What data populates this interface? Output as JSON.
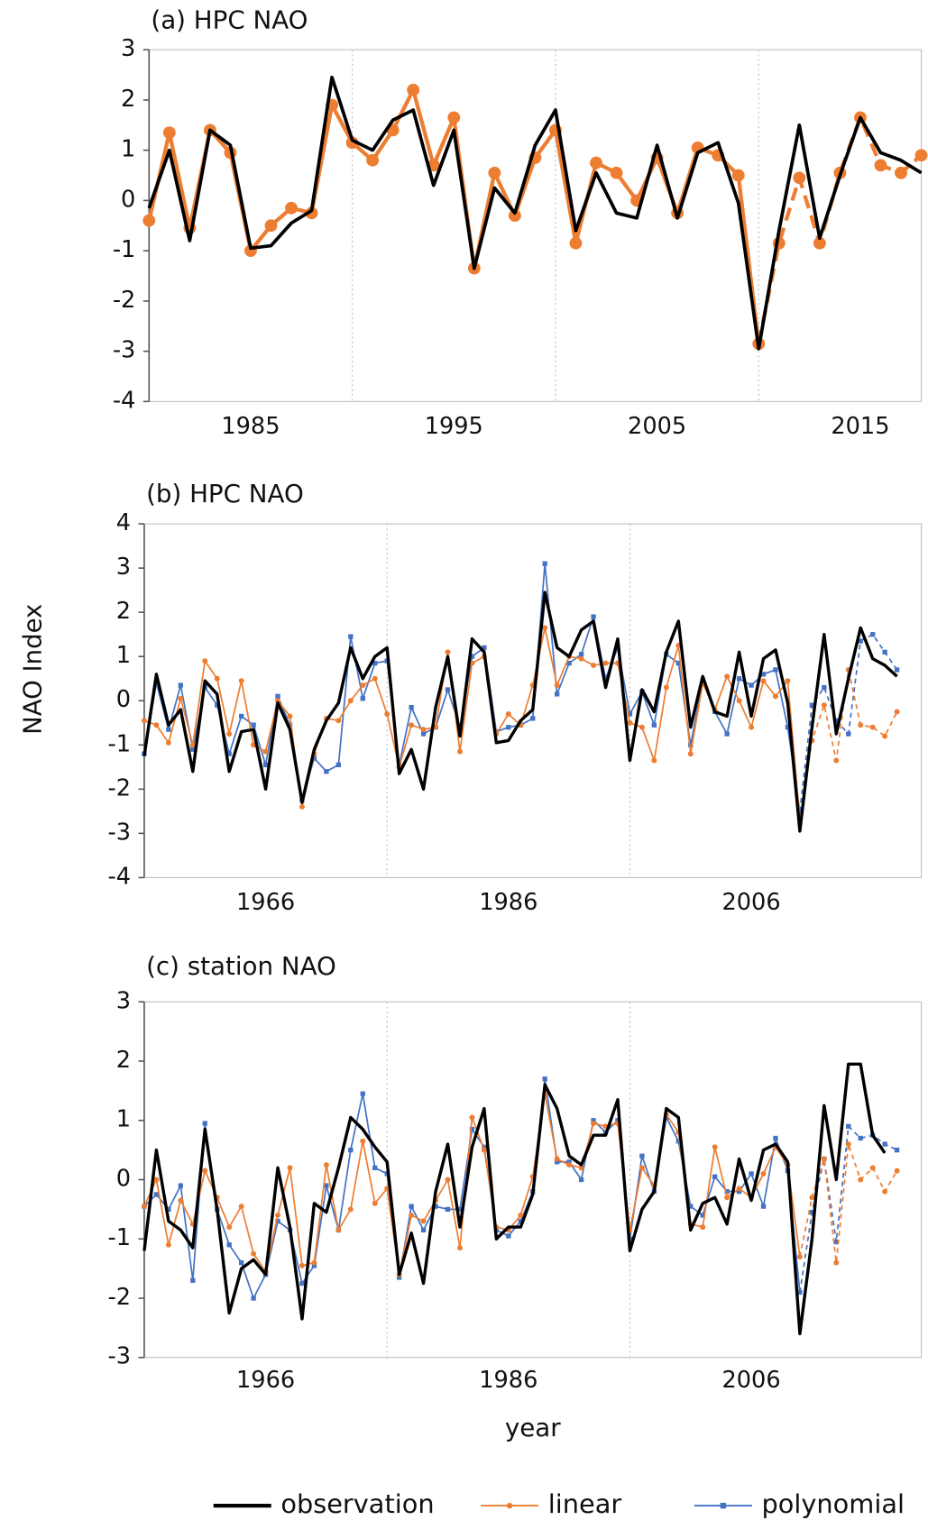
{
  "chart_data": [
    {
      "type": "line",
      "title": "(a) HPC NAO",
      "x": [
        1980,
        1981,
        1982,
        1983,
        1984,
        1985,
        1986,
        1987,
        1988,
        1989,
        1990,
        1991,
        1992,
        1993,
        1994,
        1995,
        1996,
        1997,
        1998,
        1999,
        2000,
        2001,
        2002,
        2003,
        2004,
        2005,
        2006,
        2007,
        2008,
        2009,
        2010,
        2011,
        2012,
        2013,
        2014,
        2015,
        2016,
        2017,
        2018
      ],
      "xlim": [
        1980,
        2018
      ],
      "xticks": [
        1985,
        1995,
        2005,
        2015
      ],
      "xgrid": [
        1990,
        2000,
        2010
      ],
      "ylim": [
        -4,
        3
      ],
      "yticks": [
        -4,
        -3,
        -2,
        -1,
        0,
        1,
        2,
        3
      ],
      "series": [
        {
          "color": "#000000",
          "values": [
            -0.15,
            1.0,
            -0.8,
            1.4,
            1.1,
            -0.95,
            -0.9,
            -0.45,
            -0.2,
            2.45,
            1.2,
            1.0,
            1.6,
            1.8,
            0.3,
            1.4,
            -1.35,
            0.25,
            -0.25,
            1.1,
            1.8,
            -0.6,
            0.55,
            -0.25,
            -0.35,
            1.1,
            -0.35,
            0.95,
            1.15,
            -0.05,
            -2.95,
            -0.6,
            1.5,
            -0.75,
            0.5,
            1.65,
            0.95,
            0.8,
            0.55
          ]
        },
        {
          "color": "#ed7d31",
          "marker": "circle",
          "dashed_from": 2010,
          "values": [
            -0.4,
            1.35,
            -0.55,
            1.4,
            0.95,
            -1.0,
            -0.5,
            -0.15,
            -0.25,
            1.9,
            1.15,
            0.8,
            1.4,
            2.2,
            0.7,
            1.65,
            -1.35,
            0.55,
            -0.3,
            0.85,
            1.4,
            -0.85,
            0.75,
            0.55,
            0.0,
            0.85,
            -0.25,
            1.05,
            0.9,
            0.5,
            -2.85,
            -0.85,
            0.45,
            -0.85,
            0.55,
            1.65,
            0.7,
            0.55,
            0.9
          ]
        }
      ]
    },
    {
      "type": "line",
      "title": "(b) HPC NAO",
      "ylabel": "NAO Index",
      "x": [
        1956,
        1957,
        1958,
        1959,
        1960,
        1961,
        1962,
        1963,
        1964,
        1965,
        1966,
        1967,
        1968,
        1969,
        1970,
        1971,
        1972,
        1973,
        1974,
        1975,
        1976,
        1977,
        1978,
        1979,
        1980,
        1981,
        1982,
        1983,
        1984,
        1985,
        1986,
        1987,
        1988,
        1989,
        1990,
        1991,
        1992,
        1993,
        1994,
        1995,
        1996,
        1997,
        1998,
        1999,
        2000,
        2001,
        2002,
        2003,
        2004,
        2005,
        2006,
        2007,
        2008,
        2009,
        2010,
        2011,
        2012,
        2013,
        2014,
        2015,
        2016,
        2017,
        2018
      ],
      "xlim": [
        1956,
        2020
      ],
      "xticks": [
        1966,
        1986,
        2006
      ],
      "xgrid": [
        1976,
        1996
      ],
      "ylim": [
        -4,
        4
      ],
      "yticks": [
        -4,
        -3,
        -2,
        -1,
        0,
        1,
        2,
        3,
        4
      ],
      "series": [
        {
          "name": "observation",
          "color": "#000000",
          "values": [
            -1.25,
            0.6,
            -0.55,
            -0.2,
            -1.6,
            0.45,
            0.15,
            -1.6,
            -0.7,
            -0.65,
            -2.0,
            -0.05,
            -0.65,
            -2.3,
            -1.1,
            -0.45,
            -0.05,
            1.2,
            0.5,
            1.0,
            1.2,
            -1.65,
            -1.1,
            -2.0,
            -0.15,
            1.0,
            -0.8,
            1.4,
            1.1,
            -0.95,
            -0.9,
            -0.45,
            -0.2,
            2.45,
            1.2,
            1.0,
            1.6,
            1.8,
            0.3,
            1.4,
            -1.35,
            0.25,
            -0.25,
            1.1,
            1.8,
            -0.6,
            0.55,
            -0.25,
            -0.35,
            1.1,
            -0.35,
            0.95,
            1.15,
            -0.05,
            -2.95,
            -0.6,
            1.5,
            -0.75,
            0.5,
            1.65,
            0.95,
            0.8,
            0.55
          ]
        },
        {
          "name": "linear",
          "color": "#ed7d31",
          "marker": "circle",
          "dashed_from": 2010,
          "values": [
            -0.45,
            -0.55,
            -0.95,
            0.05,
            -1.0,
            0.9,
            0.5,
            -0.75,
            0.45,
            -1.0,
            -1.15,
            0.0,
            -0.35,
            -2.4,
            -1.2,
            -0.4,
            -0.45,
            0.0,
            0.35,
            0.5,
            -0.3,
            -1.5,
            -0.55,
            -0.65,
            -0.6,
            1.1,
            -1.15,
            0.85,
            1.0,
            -0.75,
            -0.3,
            -0.55,
            0.35,
            1.65,
            0.35,
            1.0,
            0.95,
            0.8,
            0.85,
            0.85,
            -0.5,
            -0.6,
            -1.35,
            0.3,
            1.25,
            -1.2,
            0.4,
            -0.2,
            0.55,
            0.0,
            -0.6,
            0.45,
            0.1,
            0.45,
            -2.7,
            -0.9,
            -0.1,
            -1.35,
            0.7,
            -0.55,
            -0.6,
            -0.8,
            -0.25
          ]
        },
        {
          "name": "polynomial",
          "color": "#4472c4",
          "marker": "square",
          "dashed_from": 2010,
          "values": [
            -1.2,
            0.4,
            -0.65,
            0.35,
            -1.1,
            0.3,
            -0.1,
            -1.2,
            -0.35,
            -0.55,
            -1.45,
            0.1,
            -0.55,
            -2.25,
            -1.3,
            -1.6,
            -1.45,
            1.45,
            0.05,
            0.85,
            0.9,
            -1.45,
            -0.15,
            -0.75,
            -0.6,
            0.25,
            -0.6,
            1.0,
            1.2,
            -0.7,
            -0.6,
            -0.55,
            -0.4,
            3.1,
            0.15,
            0.85,
            1.05,
            1.9,
            0.5,
            1.2,
            -0.3,
            0.2,
            -0.55,
            1.05,
            0.85,
            -1.0,
            0.45,
            -0.25,
            -0.75,
            0.5,
            0.35,
            0.6,
            0.7,
            -0.6,
            -2.5,
            -0.1,
            0.3,
            -0.45,
            -0.75,
            1.35,
            1.5,
            1.1,
            0.7
          ]
        }
      ]
    },
    {
      "type": "line",
      "title": "(c) station NAO",
      "xlabel": "year",
      "x": [
        1956,
        1957,
        1958,
        1959,
        1960,
        1961,
        1962,
        1963,
        1964,
        1965,
        1966,
        1967,
        1968,
        1969,
        1970,
        1971,
        1972,
        1973,
        1974,
        1975,
        1976,
        1977,
        1978,
        1979,
        1980,
        1981,
        1982,
        1983,
        1984,
        1985,
        1986,
        1987,
        1988,
        1989,
        1990,
        1991,
        1992,
        1993,
        1994,
        1995,
        1996,
        1997,
        1998,
        1999,
        2000,
        2001,
        2002,
        2003,
        2004,
        2005,
        2006,
        2007,
        2008,
        2009,
        2010,
        2011,
        2012,
        2013,
        2014,
        2015,
        2016,
        2017,
        2018
      ],
      "xlim": [
        1956,
        2020
      ],
      "xticks": [
        1966,
        1986,
        2006
      ],
      "xgrid": [
        1976,
        1996
      ],
      "ylim": [
        -3,
        3
      ],
      "yticks": [
        -3,
        -2,
        -1,
        0,
        1,
        2,
        3
      ],
      "series": [
        {
          "name": "observation",
          "color": "#000000",
          "values": [
            -1.2,
            0.5,
            -0.7,
            -0.85,
            -1.15,
            0.85,
            -0.5,
            -2.25,
            -1.5,
            -1.35,
            -1.6,
            0.2,
            -0.8,
            -2.35,
            -0.4,
            -0.55,
            0.2,
            1.05,
            0.85,
            0.55,
            0.3,
            -1.6,
            -0.9,
            -1.75,
            -0.2,
            0.6,
            -0.8,
            0.55,
            1.2,
            -1.0,
            -0.8,
            -0.8,
            -0.25,
            1.6,
            1.2,
            0.4,
            0.25,
            0.75,
            0.75,
            1.35,
            -1.2,
            -0.5,
            -0.2,
            1.2,
            1.05,
            -0.85,
            -0.4,
            -0.3,
            -0.75,
            0.35,
            -0.35,
            0.5,
            0.6,
            0.3,
            -2.6,
            -1.0,
            1.25,
            0.0,
            1.95,
            1.95,
            0.75,
            0.45,
            null
          ]
        },
        {
          "name": "linear",
          "color": "#ed7d31",
          "marker": "circle",
          "dashed_from": 2010,
          "values": [
            -0.45,
            0.0,
            -1.1,
            -0.35,
            -0.75,
            0.15,
            -0.3,
            -0.8,
            -0.45,
            -1.25,
            -1.55,
            -0.6,
            0.2,
            -1.45,
            -1.4,
            0.25,
            -0.85,
            -0.5,
            0.65,
            -0.4,
            -0.15,
            -1.6,
            -0.6,
            -0.7,
            -0.35,
            0.0,
            -1.15,
            1.05,
            0.5,
            -0.8,
            -0.85,
            -0.6,
            0.05,
            1.45,
            0.35,
            0.25,
            0.2,
            0.95,
            0.9,
            0.95,
            -0.85,
            0.2,
            -0.1,
            1.1,
            0.8,
            -0.75,
            -0.8,
            0.55,
            -0.3,
            -0.15,
            -0.3,
            0.1,
            0.55,
            0.25,
            -1.3,
            -0.3,
            0.35,
            -1.4,
            0.6,
            0.0,
            0.2,
            -0.2,
            0.15
          ]
        },
        {
          "name": "polynomial",
          "color": "#4472c4",
          "marker": "square",
          "dashed_from": 2010,
          "values": [
            -0.45,
            -0.25,
            -0.5,
            -0.1,
            -1.7,
            0.95,
            -0.5,
            -1.1,
            -1.4,
            -2.0,
            -1.6,
            -0.7,
            -0.85,
            -1.75,
            -1.45,
            -0.1,
            -0.85,
            0.5,
            1.45,
            0.2,
            0.1,
            -1.65,
            -0.45,
            -0.85,
            -0.45,
            -0.5,
            -0.5,
            0.85,
            0.55,
            -0.85,
            -0.95,
            -0.7,
            -0.2,
            1.7,
            0.3,
            0.3,
            0.0,
            1.0,
            0.8,
            1.0,
            -1.0,
            0.4,
            -0.2,
            1.05,
            0.65,
            -0.45,
            -0.6,
            0.05,
            -0.2,
            -0.2,
            0.1,
            -0.45,
            0.7,
            0.15,
            -1.9,
            -0.55,
            0.35,
            -1.05,
            0.9,
            0.7,
            0.75,
            0.6,
            0.5
          ]
        }
      ]
    }
  ]
}
